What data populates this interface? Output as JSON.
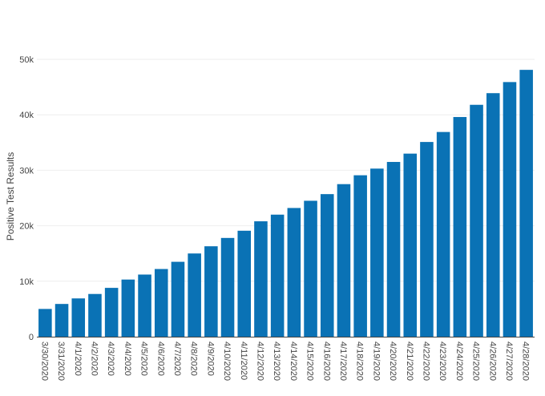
{
  "chart_data": {
    "type": "bar",
    "ylabel": "Positive Test Results",
    "xlabel": "",
    "ylim": [
      0,
      50000
    ],
    "yticks": [
      0,
      10000,
      20000,
      30000,
      40000,
      50000
    ],
    "ytick_labels": [
      "0",
      "10k",
      "20k",
      "30k",
      "40k",
      "50k"
    ],
    "grid": true,
    "bar_color": "#0a72b5",
    "categories": [
      "3/30/2020",
      "3/31/2020",
      "4/1/2020",
      "4/2/2020",
      "4/3/2020",
      "4/4/2020",
      "4/5/2020",
      "4/6/2020",
      "4/7/2020",
      "4/8/2020",
      "4/9/2020",
      "4/10/2020",
      "4/11/2020",
      "4/12/2020",
      "4/13/2020",
      "4/14/2020",
      "4/15/2020",
      "4/16/2020",
      "4/17/2020",
      "4/18/2020",
      "4/19/2020",
      "4/20/2020",
      "4/21/2020",
      "4/22/2020",
      "4/23/2020",
      "4/24/2020",
      "4/25/2020",
      "4/26/2020",
      "4/27/2020",
      "4/28/2020"
    ],
    "values": [
      5000,
      5900,
      6900,
      7700,
      8800,
      10300,
      11200,
      12200,
      13500,
      15000,
      16300,
      17800,
      19100,
      20800,
      22000,
      23200,
      24500,
      25700,
      27500,
      29100,
      30300,
      31500,
      33000,
      35100,
      36900,
      39600,
      41800,
      43900,
      45900,
      48100
    ]
  }
}
